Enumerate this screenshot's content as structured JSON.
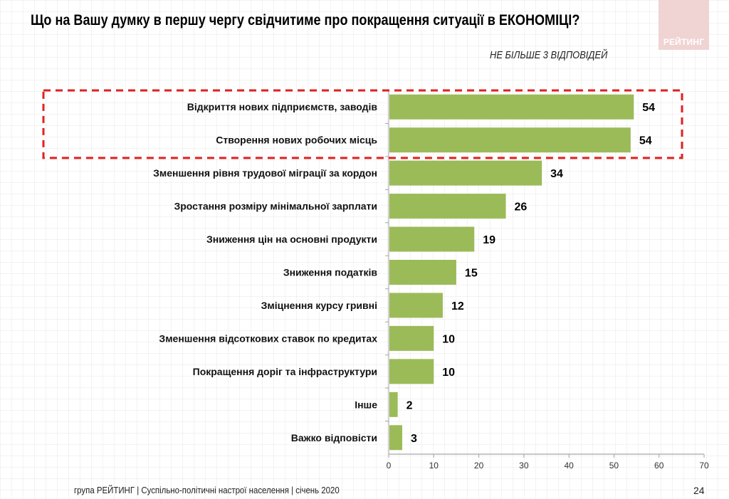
{
  "header": {
    "title": "Що на Вашу думку в першу чергу свідчитиме про покращення ситуації в ЕКОНОМІЦІ?",
    "subtitle": "НЕ БІЛЬШЕ 3 ВІДПОВІДЕЙ",
    "logo_text": "РЕЙТИНГ"
  },
  "footer": {
    "source": "група РЕЙТИНГ | Суспільно-політичні настрої населення  | січень  2020",
    "page_number": "24"
  },
  "colors": {
    "bar": "#9BBB59",
    "highlight_box": "#E02020",
    "axis": "#A6A6A6",
    "logo_bg": "#F0D3D3"
  },
  "chart_data": {
    "type": "bar",
    "orientation": "horizontal",
    "title": "Що на Вашу думку в першу чергу свідчитиме про покращення ситуації в ЕКОНОМІЦІ?",
    "subtitle": "НЕ БІЛЬШЕ 3 ВІДПОВІДЕЙ",
    "xlabel": "",
    "ylabel": "",
    "xlim": [
      0,
      70
    ],
    "x_ticks": [
      0,
      10,
      20,
      30,
      40,
      50,
      60,
      70
    ],
    "grid": false,
    "legend": "none",
    "categories": [
      "Відкриття нових підприємств, заводів",
      "Створення нових робочих місць",
      "Зменшення рівня трудової міграції за кордон",
      "Зростання розміру мінімальної зарплати",
      "Зниження цін на основні продукти",
      "Зниження податків",
      "Зміцнення курсу гривні",
      "Зменшення відсоткових ставок по кредитах",
      "Покращення доріг та інфраструктури",
      "Інше",
      "Важко відповісти"
    ],
    "values": [
      54.4,
      53.7,
      34,
      26,
      19,
      15,
      12,
      10,
      10,
      2,
      3
    ],
    "data_labels": [
      "54",
      "54",
      "34",
      "26",
      "19",
      "15",
      "12",
      "10",
      "10",
      "2",
      "3"
    ],
    "annotations": [
      {
        "type": "dashed-highlight-box",
        "covers_categories": [
          0,
          1
        ]
      }
    ]
  }
}
